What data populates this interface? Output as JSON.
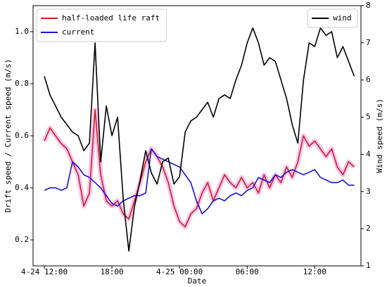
{
  "chart_data": {
    "type": "line",
    "xlabel": "Date",
    "ylabel": "Drift speed / Current speed (m/s)",
    "y2label": "Wind speed (m/s)",
    "xlim": [
      11,
      40.1
    ],
    "xticks": [
      {
        "value": 12,
        "label": "4-24 12:00"
      },
      {
        "value": 18,
        "label": "18:00"
      },
      {
        "value": 24,
        "label": "4-25 00:00"
      },
      {
        "value": 30,
        "label": "06:00"
      },
      {
        "value": 36,
        "label": "12:00"
      }
    ],
    "ylim": [
      0.1,
      1.1
    ],
    "yticks": [
      0.2,
      0.4,
      0.6,
      0.8,
      {
        "value": 1,
        "label": "1.0"
      }
    ],
    "y2lim": [
      1,
      8
    ],
    "y2ticks": [
      1,
      2,
      3,
      4,
      5,
      6,
      7,
      8
    ],
    "legend": "upper left",
    "legend2": "upper right",
    "x": [
      12,
      12.5,
      13,
      13.5,
      14,
      14.5,
      15,
      15.5,
      16,
      16.5,
      17,
      17.5,
      18,
      18.5,
      19,
      19.5,
      20,
      20.5,
      21,
      21.5,
      22,
      22.5,
      23,
      23.5,
      24,
      24.5,
      25,
      25.5,
      26,
      26.5,
      27,
      27.5,
      28,
      28.5,
      29,
      29.5,
      30,
      30.5,
      31,
      31.5,
      32,
      32.5,
      33,
      33.5,
      34,
      34.5,
      35,
      35.5,
      36,
      36.5,
      37,
      37.5,
      38,
      38.5,
      39,
      39.5
    ],
    "series": [
      {
        "name": "half-loaded life raft",
        "color": "#d0201a",
        "values": [
          0.58,
          0.63,
          0.6,
          0.57,
          0.55,
          0.5,
          0.45,
          0.33,
          0.38,
          0.7,
          0.45,
          0.35,
          0.33,
          0.35,
          0.3,
          0.28,
          0.35,
          0.42,
          0.5,
          0.55,
          0.52,
          0.48,
          0.42,
          0.33,
          0.27,
          0.25,
          0.3,
          0.32,
          0.38,
          0.42,
          0.35,
          0.4,
          0.45,
          0.42,
          0.4,
          0.44,
          0.4,
          0.42,
          0.38,
          0.45,
          0.4,
          0.45,
          0.42,
          0.48,
          0.44,
          0.5,
          0.6,
          0.56,
          0.58,
          0.55,
          0.52,
          0.55,
          0.48,
          0.45,
          0.5,
          0.48
        ]
      },
      {
        "name": "current",
        "color": "#1a10d8",
        "values": [
          0.39,
          0.4,
          0.4,
          0.39,
          0.4,
          0.5,
          0.48,
          0.45,
          0.44,
          0.42,
          0.4,
          0.37,
          0.34,
          0.33,
          0.35,
          0.36,
          0.37,
          0.37,
          0.38,
          0.55,
          0.52,
          0.51,
          0.5,
          0.49,
          0.48,
          0.45,
          0.42,
          0.35,
          0.3,
          0.32,
          0.35,
          0.36,
          0.35,
          0.37,
          0.38,
          0.37,
          0.39,
          0.4,
          0.44,
          0.43,
          0.42,
          0.45,
          0.44,
          0.46,
          0.47,
          0.46,
          0.45,
          0.46,
          0.47,
          0.44,
          0.43,
          0.42,
          0.42,
          0.43,
          0.41,
          0.41
        ]
      },
      {
        "name": "wind",
        "color": "#000000",
        "axis": "y2",
        "values": [
          6.1,
          5.6,
          5.3,
          5.0,
          4.8,
          4.6,
          4.5,
          4.1,
          4.3,
          7.0,
          3.8,
          5.3,
          4.5,
          5.0,
          2.8,
          1.4,
          2.6,
          3.3,
          4.1,
          3.5,
          3.2,
          3.8,
          3.9,
          3.2,
          3.4,
          4.6,
          4.9,
          5.0,
          5.2,
          5.4,
          5.0,
          5.5,
          5.6,
          5.5,
          6.0,
          6.4,
          7.0,
          7.4,
          7.0,
          6.4,
          6.6,
          6.5,
          6.0,
          5.5,
          4.8,
          4.3,
          6.0,
          7.0,
          6.9,
          7.4,
          7.2,
          7.3,
          6.6,
          6.9,
          6.5,
          6.1
        ]
      }
    ]
  }
}
